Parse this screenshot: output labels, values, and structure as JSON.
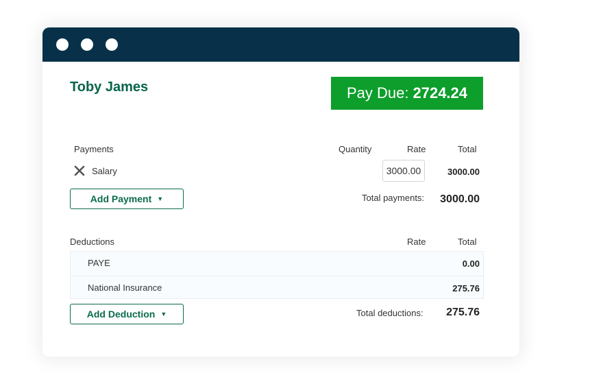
{
  "employee": {
    "name": "Toby James"
  },
  "pay_due": {
    "label": "Pay Due:",
    "amount": "2724.24"
  },
  "payments": {
    "header": "Payments",
    "columns": {
      "quantity": "Quantity",
      "rate": "Rate",
      "total": "Total"
    },
    "rows": [
      {
        "label": "Salary",
        "rate": "3000.00",
        "total": "3000.00"
      }
    ],
    "add_button": "Add Payment",
    "total_label": "Total payments:",
    "total_value": "3000.00"
  },
  "deductions": {
    "header": "Deductions",
    "columns": {
      "rate": "Rate",
      "total": "Total"
    },
    "rows": [
      {
        "label": "PAYE",
        "total": "0.00"
      },
      {
        "label": "National Insurance",
        "total": "275.76"
      }
    ],
    "add_button": "Add Deduction",
    "total_label": "Total deductions:",
    "total_value": "275.76"
  },
  "colors": {
    "titlebar": "#083149",
    "accent_green": "#06654a",
    "pay_due_bg": "#0d9e2b"
  }
}
